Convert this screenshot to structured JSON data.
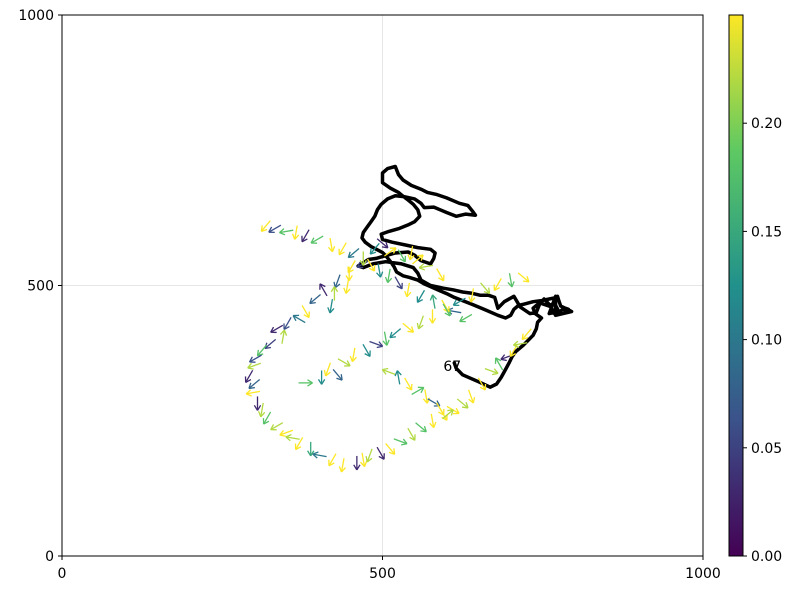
{
  "chart_data": {
    "type": "scatter",
    "xlim": [
      0,
      1000
    ],
    "ylim": [
      0,
      1000
    ],
    "x_ticks": [
      "0",
      "500",
      "1000"
    ],
    "y_ticks": [
      "0",
      "500",
      "1000"
    ],
    "grid": true,
    "annotation": "67",
    "annotation_pos": [
      595,
      342
    ],
    "colorbar": {
      "range": [
        0,
        0.25
      ],
      "ticks": [
        "0.00",
        "0.05",
        "0.10",
        "0.15",
        "0.20"
      ],
      "tick_values": [
        0,
        0.05,
        0.1,
        0.15,
        0.2
      ],
      "colormap": "viridis",
      "colors": [
        "#440154",
        "#3b528b",
        "#21918c",
        "#5ec962",
        "#fde725"
      ]
    },
    "track": [
      [
        612,
        357
      ],
      [
        615,
        347
      ],
      [
        625,
        335
      ],
      [
        650,
        322
      ],
      [
        668,
        312
      ],
      [
        678,
        318
      ],
      [
        685,
        330
      ],
      [
        692,
        345
      ],
      [
        698,
        358
      ],
      [
        702,
        368
      ],
      [
        708,
        378
      ],
      [
        720,
        390
      ],
      [
        735,
        408
      ],
      [
        740,
        420
      ],
      [
        742,
        432
      ],
      [
        748,
        440
      ],
      [
        738,
        448
      ],
      [
        735,
        458
      ],
      [
        745,
        468
      ],
      [
        760,
        462
      ],
      [
        768,
        468
      ],
      [
        775,
        452
      ],
      [
        760,
        448
      ],
      [
        770,
        480
      ],
      [
        770,
        445
      ],
      [
        780,
        455
      ],
      [
        790,
        455
      ],
      [
        795,
        452
      ],
      [
        770,
        445
      ],
      [
        760,
        465
      ],
      [
        752,
        475
      ],
      [
        745,
        465
      ],
      [
        740,
        450
      ],
      [
        730,
        448
      ],
      [
        715,
        460
      ],
      [
        705,
        480
      ],
      [
        690,
        470
      ],
      [
        680,
        458
      ],
      [
        675,
        478
      ],
      [
        665,
        482
      ],
      [
        652,
        482
      ],
      [
        638,
        486
      ],
      [
        625,
        488
      ],
      [
        610,
        492
      ],
      [
        595,
        495
      ],
      [
        575,
        500
      ],
      [
        560,
        510
      ],
      [
        555,
        523
      ],
      [
        548,
        533
      ],
      [
        530,
        540
      ],
      [
        505,
        544
      ],
      [
        485,
        540
      ],
      [
        470,
        533
      ],
      [
        462,
        536
      ],
      [
        470,
        542
      ],
      [
        478,
        548
      ],
      [
        490,
        550
      ],
      [
        505,
        555
      ],
      [
        520,
        560
      ],
      [
        540,
        562
      ],
      [
        550,
        556
      ],
      [
        560,
        546
      ],
      [
        575,
        540
      ],
      [
        580,
        550
      ],
      [
        582,
        560
      ],
      [
        575,
        567
      ],
      [
        555,
        570
      ],
      [
        535,
        575
      ],
      [
        515,
        580
      ],
      [
        500,
        585
      ],
      [
        498,
        595
      ],
      [
        510,
        600
      ],
      [
        525,
        605
      ],
      [
        540,
        612
      ],
      [
        550,
        618
      ],
      [
        558,
        628
      ],
      [
        555,
        640
      ],
      [
        548,
        650
      ],
      [
        540,
        658
      ],
      [
        532,
        665
      ],
      [
        525,
        672
      ],
      [
        512,
        680
      ],
      [
        500,
        690
      ],
      [
        500,
        708
      ],
      [
        508,
        716
      ],
      [
        520,
        720
      ],
      [
        525,
        705
      ],
      [
        532,
        695
      ],
      [
        545,
        685
      ],
      [
        560,
        678
      ],
      [
        570,
        672
      ],
      [
        585,
        668
      ],
      [
        600,
        662
      ],
      [
        620,
        652
      ],
      [
        633,
        648
      ],
      [
        640,
        638
      ],
      [
        645,
        630
      ],
      [
        630,
        632
      ],
      [
        615,
        628
      ],
      [
        600,
        635
      ],
      [
        590,
        640
      ],
      [
        580,
        645
      ],
      [
        565,
        644
      ],
      [
        560,
        652
      ],
      [
        550,
        660
      ],
      [
        535,
        664
      ],
      [
        520,
        666
      ],
      [
        508,
        660
      ],
      [
        498,
        650
      ],
      [
        492,
        640
      ],
      [
        488,
        628
      ],
      [
        482,
        618
      ],
      [
        476,
        608
      ],
      [
        470,
        598
      ],
      [
        468,
        588
      ],
      [
        473,
        580
      ],
      [
        482,
        572
      ],
      [
        492,
        566
      ],
      [
        500,
        561
      ],
      [
        505,
        555
      ],
      [
        512,
        545
      ],
      [
        518,
        535
      ],
      [
        522,
        525
      ],
      [
        532,
        518
      ],
      [
        542,
        515
      ],
      [
        555,
        510
      ],
      [
        565,
        503
      ],
      [
        575,
        498
      ],
      [
        590,
        490
      ],
      [
        600,
        485
      ],
      [
        612,
        478
      ],
      [
        625,
        472
      ],
      [
        640,
        465
      ],
      [
        660,
        455
      ],
      [
        680,
        445
      ],
      [
        692,
        440
      ],
      [
        700,
        445
      ],
      [
        705,
        456
      ],
      [
        712,
        463
      ],
      [
        722,
        466
      ],
      [
        735,
        470
      ],
      [
        748,
        472
      ],
      [
        760,
        475
      ],
      [
        768,
        477
      ],
      [
        773,
        480
      ],
      [
        775,
        472
      ],
      [
        778,
        462
      ],
      [
        785,
        458
      ],
      [
        790,
        456
      ],
      [
        785,
        450
      ]
    ],
    "arrows": [
      [
        500,
        578,
        0.03,
        -40
      ],
      [
        488,
        568,
        0.12,
        -130
      ],
      [
        512,
        562,
        0.25,
        35
      ],
      [
        530,
        555,
        0.18,
        -60
      ],
      [
        545,
        560,
        0.25,
        -100
      ],
      [
        555,
        548,
        0.25,
        40
      ],
      [
        568,
        535,
        0.22,
        -170
      ],
      [
        590,
        520,
        0.25,
        -60
      ],
      [
        470,
        540,
        0.05,
        -150
      ],
      [
        452,
        535,
        0.25,
        -120
      ],
      [
        448,
        522,
        0.25,
        -90
      ],
      [
        430,
        508,
        0.08,
        -110
      ],
      [
        445,
        498,
        0.25,
        -100
      ],
      [
        408,
        492,
        0.03,
        120
      ],
      [
        425,
        485,
        0.22,
        90
      ],
      [
        395,
        475,
        0.08,
        -140
      ],
      [
        420,
        462,
        0.12,
        -100
      ],
      [
        380,
        452,
        0.25,
        -60
      ],
      [
        370,
        438,
        0.1,
        150
      ],
      [
        352,
        430,
        0.06,
        -120
      ],
      [
        335,
        420,
        0.03,
        -150
      ],
      [
        345,
        405,
        0.22,
        80
      ],
      [
        325,
        392,
        0.05,
        -140
      ],
      [
        312,
        380,
        0.18,
        -130
      ],
      [
        302,
        365,
        0.06,
        -150
      ],
      [
        300,
        352,
        0.22,
        -160
      ],
      [
        292,
        332,
        0.03,
        -120
      ],
      [
        300,
        318,
        0.08,
        -140
      ],
      [
        298,
        302,
        0.25,
        -170
      ],
      [
        305,
        282,
        0.03,
        -90
      ],
      [
        312,
        270,
        0.22,
        -100
      ],
      [
        320,
        255,
        0.18,
        -120
      ],
      [
        335,
        240,
        0.22,
        -150
      ],
      [
        350,
        228,
        0.25,
        -160
      ],
      [
        360,
        218,
        0.22,
        170
      ],
      [
        370,
        208,
        0.25,
        -120
      ],
      [
        388,
        198,
        0.15,
        -90
      ],
      [
        402,
        186,
        0.1,
        170
      ],
      [
        422,
        178,
        0.25,
        -120
      ],
      [
        438,
        168,
        0.25,
        -100
      ],
      [
        460,
        172,
        0.03,
        -90
      ],
      [
        470,
        178,
        0.25,
        -80
      ],
      [
        480,
        186,
        0.22,
        -110
      ],
      [
        497,
        190,
        0.03,
        -60
      ],
      [
        512,
        198,
        0.25,
        -50
      ],
      [
        528,
        212,
        0.18,
        -20
      ],
      [
        545,
        225,
        0.22,
        -60
      ],
      [
        560,
        238,
        0.18,
        -40
      ],
      [
        578,
        250,
        0.25,
        -80
      ],
      [
        595,
        262,
        0.25,
        -60
      ],
      [
        610,
        270,
        0.25,
        -30
      ],
      [
        625,
        282,
        0.22,
        -40
      ],
      [
        638,
        295,
        0.25,
        -70
      ],
      [
        655,
        318,
        0.25,
        -60
      ],
      [
        670,
        342,
        0.22,
        -20
      ],
      [
        682,
        355,
        0.18,
        120
      ],
      [
        695,
        368,
        0.03,
        -160
      ],
      [
        705,
        380,
        0.25,
        -120
      ],
      [
        715,
        392,
        0.22,
        -170
      ],
      [
        725,
        410,
        0.25,
        -130
      ],
      [
        630,
        440,
        0.18,
        -150
      ],
      [
        612,
        452,
        0.08,
        170
      ],
      [
        598,
        462,
        0.25,
        -60
      ],
      [
        580,
        470,
        0.15,
        100
      ],
      [
        560,
        480,
        0.12,
        -120
      ],
      [
        540,
        492,
        0.25,
        -100
      ],
      [
        525,
        505,
        0.05,
        -60
      ],
      [
        510,
        518,
        0.18,
        -100
      ],
      [
        495,
        528,
        0.12,
        -80
      ],
      [
        482,
        538,
        0.25,
        -60
      ],
      [
        470,
        550,
        0.22,
        -90
      ],
      [
        455,
        560,
        0.1,
        -140
      ],
      [
        438,
        568,
        0.25,
        -120
      ],
      [
        420,
        575,
        0.25,
        -80
      ],
      [
        398,
        585,
        0.18,
        -150
      ],
      [
        380,
        592,
        0.03,
        -120
      ],
      [
        365,
        598,
        0.25,
        -100
      ],
      [
        350,
        600,
        0.18,
        -170
      ],
      [
        332,
        605,
        0.06,
        -150
      ],
      [
        318,
        610,
        0.25,
        -130
      ],
      [
        380,
        320,
        0.18,
        0
      ],
      [
        405,
        330,
        0.12,
        -90
      ],
      [
        415,
        345,
        0.25,
        -110
      ],
      [
        430,
        335,
        0.08,
        -50
      ],
      [
        440,
        358,
        0.22,
        -30
      ],
      [
        455,
        372,
        0.25,
        -100
      ],
      [
        475,
        380,
        0.12,
        -60
      ],
      [
        490,
        392,
        0.05,
        -20
      ],
      [
        505,
        402,
        0.18,
        -80
      ],
      [
        520,
        412,
        0.12,
        -140
      ],
      [
        540,
        422,
        0.25,
        -40
      ],
      [
        560,
        432,
        0.22,
        -110
      ],
      [
        578,
        443,
        0.25,
        -90
      ],
      [
        600,
        455,
        0.18,
        -60
      ],
      [
        620,
        470,
        0.12,
        -150
      ],
      [
        640,
        482,
        0.25,
        -100
      ],
      [
        660,
        495,
        0.22,
        -50
      ],
      [
        680,
        502,
        0.25,
        -120
      ],
      [
        700,
        510,
        0.18,
        -80
      ],
      [
        720,
        515,
        0.25,
        -40
      ],
      [
        510,
        340,
        0.22,
        160
      ],
      [
        525,
        330,
        0.12,
        100
      ],
      [
        540,
        318,
        0.25,
        -60
      ],
      [
        555,
        305,
        0.18,
        30
      ],
      [
        568,
        295,
        0.25,
        -80
      ],
      [
        580,
        284,
        0.08,
        -30
      ],
      [
        590,
        272,
        0.25,
        -60
      ],
      [
        602,
        262,
        0.22,
        40
      ]
    ]
  }
}
